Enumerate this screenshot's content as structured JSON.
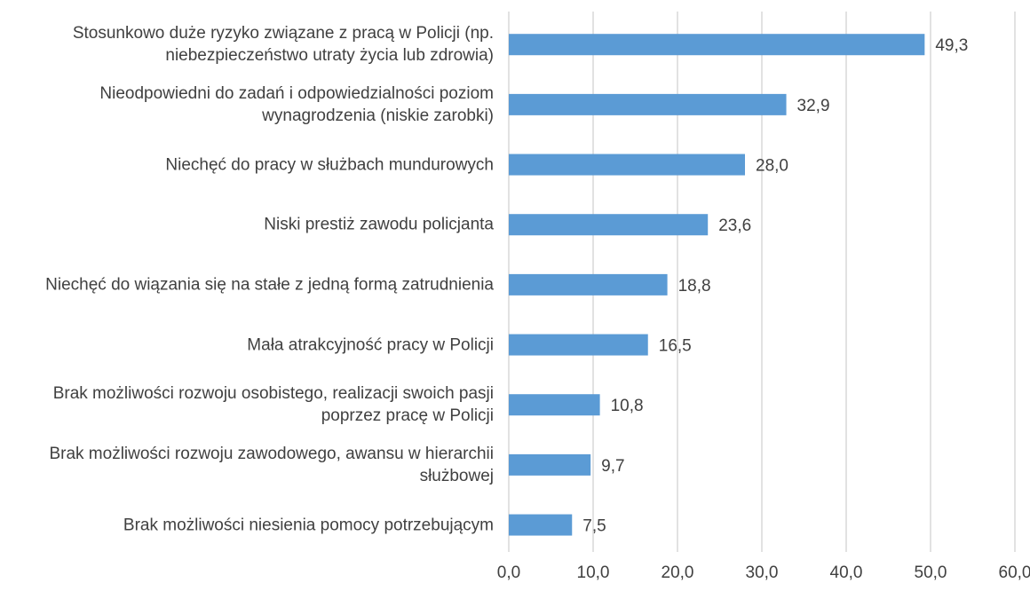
{
  "chart_data": {
    "type": "bar",
    "orientation": "horizontal",
    "categories": [
      "Stosunkowo duże ryzyko związane z pracą w Policji (np. niebezpieczeństwo utraty życia lub zdrowia)",
      "Nieodpowiedni do zadań i odpowiedzialności poziom wynagrodzenia (niskie zarobki)",
      "Niechęć do pracy w służbach mundurowych",
      "Niski prestiż zawodu policjanta",
      "Niechęć do wiązania się na stałe z jedną formą zatrudnienia",
      "Mała atrakcyjność pracy w Policji",
      "Brak możliwości rozwoju osobistego, realizacji swoich pasji poprzez pracę w Policji",
      "Brak możliwości rozwoju zawodowego, awansu w hierarchii służbowej",
      "Brak możliwości niesienia pomocy potrzebującym"
    ],
    "values": [
      49.3,
      32.9,
      28.0,
      23.6,
      18.8,
      16.5,
      10.8,
      9.7,
      7.5
    ],
    "value_labels": [
      "49,3",
      "32,9",
      "28,0",
      "23,6",
      "18,8",
      "16,5",
      "10,8",
      "9,7",
      "7,5"
    ],
    "color": "#5b9bd5",
    "xlim": [
      0,
      60
    ],
    "xticks": [
      {
        "value": 0,
        "label": "0,0"
      },
      {
        "value": 10,
        "label": "10,0"
      },
      {
        "value": 20,
        "label": "20,0"
      },
      {
        "value": 30,
        "label": "30,0"
      },
      {
        "value": 40,
        "label": "40,0"
      },
      {
        "value": 50,
        "label": "50,0"
      },
      {
        "value": 60,
        "label": "60,0"
      }
    ],
    "grid": true
  }
}
